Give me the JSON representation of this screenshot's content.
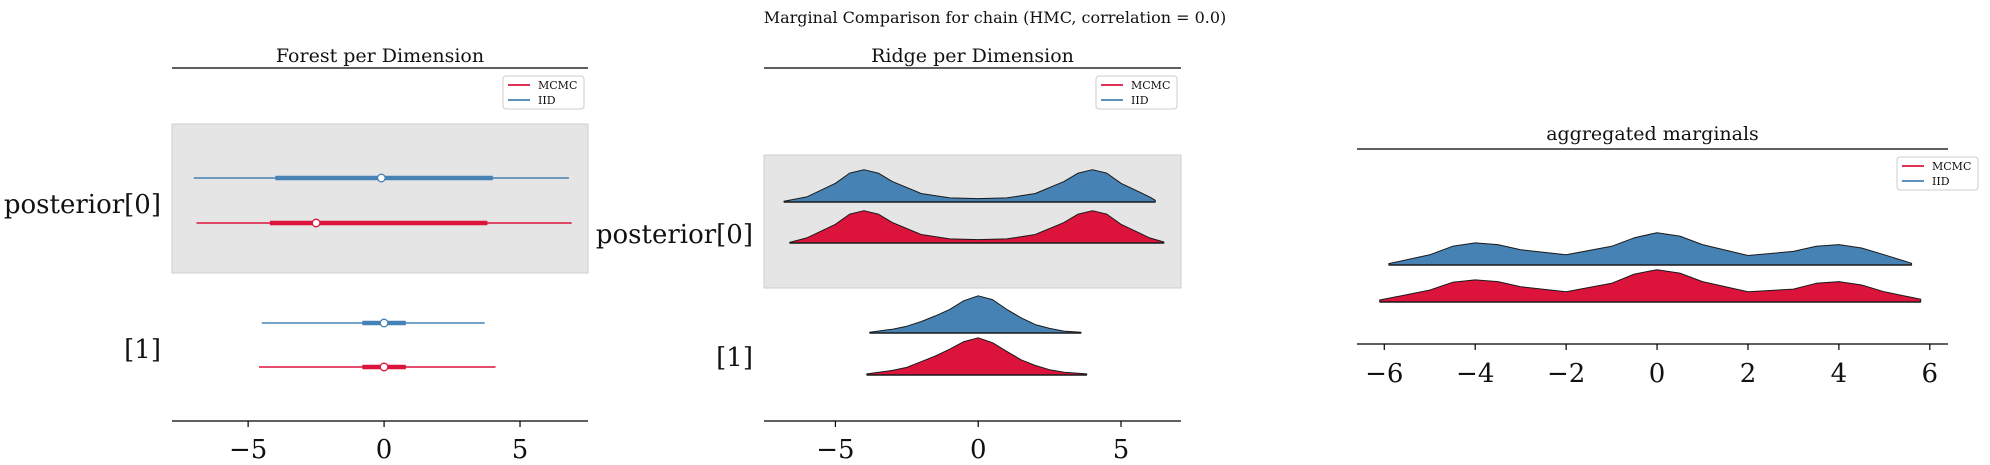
{
  "figure": {
    "suptitle": "Marginal Comparison for chain (HMC, correlation = 0.0)",
    "colors": {
      "mcmc": "#dc143c",
      "iid": "#4682b4",
      "band": "#e5e5e5",
      "outline": "#1a1a1a"
    }
  },
  "chart_data": [
    {
      "type": "forest",
      "title": "Forest per Dimension",
      "xlim": [
        -7.8,
        7.5
      ],
      "xticks": [
        "-5",
        "0",
        "5"
      ],
      "legend": {
        "placement": "top-right",
        "entries": [
          "MCMC",
          "IID"
        ]
      },
      "rows": [
        {
          "label": "posterior[0]",
          "shaded": true,
          "series": [
            {
              "name": "IID",
              "low": -7.0,
              "q1": -4.0,
              "median": -0.1,
              "q3": 4.0,
              "high": 6.8
            },
            {
              "name": "MCMC",
              "low": -6.9,
              "q1": -4.2,
              "median": -2.5,
              "q3": 3.8,
              "high": 6.9
            }
          ]
        },
        {
          "label": "[1]",
          "shaded": false,
          "series": [
            {
              "name": "IID",
              "low": -4.5,
              "q1": -0.8,
              "median": 0.0,
              "q3": 0.8,
              "high": 3.7
            },
            {
              "name": "MCMC",
              "low": -4.6,
              "q1": -0.8,
              "median": 0.0,
              "q3": 0.8,
              "high": 4.1
            }
          ]
        }
      ]
    },
    {
      "type": "ridge",
      "title": "Ridge per Dimension",
      "xlim": [
        -7.5,
        7.1
      ],
      "xticks": [
        "-5",
        "0",
        "5"
      ],
      "legend": {
        "placement": "top-right",
        "entries": [
          "MCMC",
          "IID"
        ]
      },
      "rows": [
        {
          "label": "posterior[0]",
          "shaded": true,
          "series": [
            {
              "name": "IID",
              "x": [
                -6.8,
                -6.0,
                -5.0,
                -4.5,
                -4.0,
                -3.5,
                -3.0,
                -2.0,
                -1.0,
                0.0,
                1.0,
                2.0,
                3.0,
                3.5,
                4.0,
                4.5,
                5.0,
                6.0,
                6.2
              ],
              "density": [
                0.02,
                0.15,
                0.55,
                0.85,
                0.95,
                0.85,
                0.6,
                0.25,
                0.12,
                0.1,
                0.12,
                0.25,
                0.6,
                0.85,
                0.95,
                0.85,
                0.55,
                0.15,
                0.05
              ]
            },
            {
              "name": "MCMC",
              "x": [
                -6.6,
                -6.0,
                -5.0,
                -4.5,
                -4.0,
                -3.5,
                -3.0,
                -2.0,
                -1.0,
                0.0,
                1.0,
                2.0,
                3.0,
                3.5,
                4.0,
                4.5,
                5.0,
                6.0,
                6.5
              ],
              "density": [
                0.02,
                0.15,
                0.55,
                0.85,
                0.95,
                0.85,
                0.6,
                0.25,
                0.12,
                0.1,
                0.12,
                0.25,
                0.6,
                0.85,
                0.95,
                0.85,
                0.55,
                0.15,
                0.03
              ]
            }
          ]
        },
        {
          "label": "[1]",
          "shaded": false,
          "series": [
            {
              "name": "IID",
              "x": [
                -3.8,
                -3.0,
                -2.5,
                -2.0,
                -1.5,
                -1.0,
                -0.5,
                0.0,
                0.5,
                1.0,
                1.5,
                2.0,
                2.5,
                3.0,
                3.6
              ],
              "density": [
                0.02,
                0.1,
                0.18,
                0.3,
                0.45,
                0.62,
                0.85,
                0.98,
                0.88,
                0.62,
                0.4,
                0.22,
                0.12,
                0.05,
                0.02
              ]
            },
            {
              "name": "MCMC",
              "x": [
                -3.9,
                -3.0,
                -2.5,
                -2.0,
                -1.5,
                -1.0,
                -0.5,
                0.0,
                0.5,
                1.0,
                1.5,
                2.0,
                2.5,
                3.0,
                3.8
              ],
              "density": [
                0.03,
                0.12,
                0.2,
                0.35,
                0.5,
                0.68,
                0.88,
                0.98,
                0.85,
                0.62,
                0.4,
                0.25,
                0.14,
                0.07,
                0.03
              ]
            }
          ]
        }
      ]
    },
    {
      "type": "ridge",
      "title": "aggregated marginals",
      "xlim": [
        -6.6,
        6.4
      ],
      "xticks": [
        "-6",
        "-4",
        "-2",
        "0",
        "2",
        "4",
        "6"
      ],
      "legend": {
        "placement": "top-right",
        "entries": [
          "MCMC",
          "IID"
        ]
      },
      "rows": [
        {
          "label": "",
          "shaded": false,
          "series": [
            {
              "name": "IID",
              "x": [
                -5.9,
                -5.0,
                -4.5,
                -4.0,
                -3.5,
                -3.0,
                -2.0,
                -1.0,
                -0.5,
                0.0,
                0.5,
                1.0,
                2.0,
                3.0,
                3.5,
                4.0,
                4.5,
                5.0,
                5.6
              ],
              "density": [
                0.04,
                0.3,
                0.55,
                0.65,
                0.6,
                0.45,
                0.3,
                0.55,
                0.8,
                0.95,
                0.85,
                0.6,
                0.28,
                0.4,
                0.55,
                0.6,
                0.5,
                0.3,
                0.05
              ]
            },
            {
              "name": "MCMC",
              "x": [
                -6.1,
                -5.0,
                -4.5,
                -4.0,
                -3.5,
                -3.0,
                -2.0,
                -1.0,
                -0.5,
                0.0,
                0.5,
                1.0,
                2.0,
                3.0,
                3.5,
                4.0,
                4.5,
                5.0,
                5.8
              ],
              "density": [
                0.06,
                0.35,
                0.58,
                0.65,
                0.6,
                0.45,
                0.3,
                0.55,
                0.82,
                0.95,
                0.85,
                0.6,
                0.3,
                0.38,
                0.55,
                0.6,
                0.5,
                0.3,
                0.08
              ]
            }
          ]
        }
      ]
    }
  ]
}
